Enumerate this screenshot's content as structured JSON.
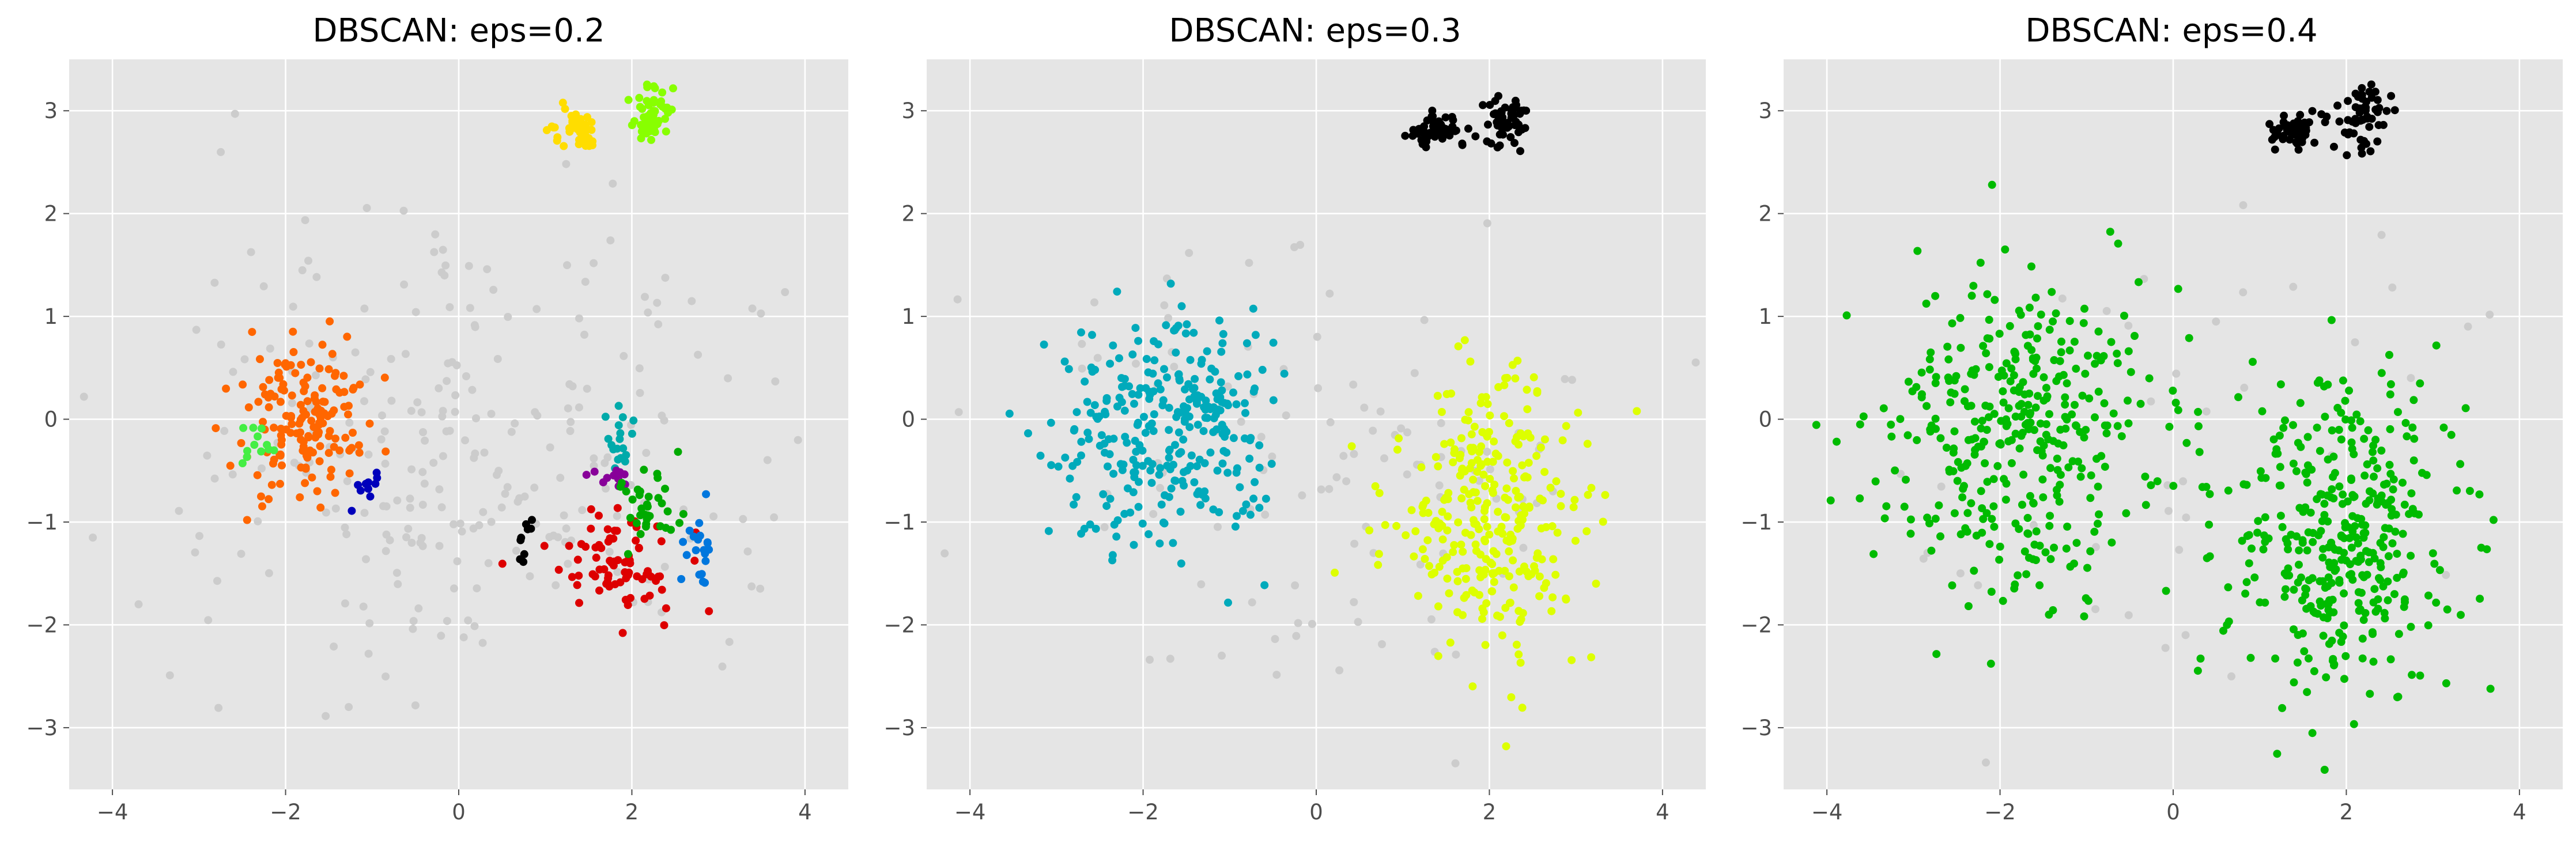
{
  "chart_data": [
    {
      "type": "scatter",
      "title": "DBSCAN: eps=0.2",
      "xlim": [
        -4.5,
        4.5
      ],
      "ylim": [
        -3.6,
        3.5
      ],
      "xticks": [
        -4,
        -2,
        0,
        2,
        4
      ],
      "yticks": [
        -3,
        -2,
        -1,
        0,
        1,
        2,
        3
      ],
      "xtick_labels": [
        "−4",
        "−2",
        "0",
        "2",
        "4"
      ],
      "ytick_labels": [
        "−3",
        "−2",
        "−1",
        "0",
        "1",
        "2",
        "3"
      ],
      "grid": true,
      "style": "ggplot",
      "clusters": [
        {
          "color": "#cccccc",
          "role": "noise",
          "center": [
            0,
            -0.3
          ],
          "spread": [
            1.7,
            1.15
          ],
          "count": 260
        },
        {
          "color": "#ff6600",
          "center": [
            -1.8,
            0.0
          ],
          "spread": [
            0.38,
            0.38
          ],
          "count": 160
        },
        {
          "color": "#ffdd00",
          "center": [
            1.35,
            2.8
          ],
          "spread": [
            0.15,
            0.1
          ],
          "count": 55
        },
        {
          "color": "#88ff00",
          "center": [
            2.25,
            2.92
          ],
          "spread": [
            0.13,
            0.14
          ],
          "count": 55
        },
        {
          "color": "#44ee44",
          "center": [
            -2.35,
            -0.28
          ],
          "spread": [
            0.1,
            0.1
          ],
          "count": 12
        },
        {
          "color": "#0000bb",
          "center": [
            -1.05,
            -0.65
          ],
          "spread": [
            0.1,
            0.06
          ],
          "count": 10
        },
        {
          "color": "#000000",
          "center": [
            0.75,
            -1.15
          ],
          "spread": [
            0.05,
            0.12
          ],
          "count": 9
        },
        {
          "color": "#dd0000",
          "center": [
            1.8,
            -1.45
          ],
          "spread": [
            0.38,
            0.25
          ],
          "count": 80
        },
        {
          "color": "#00aaaa",
          "center": [
            1.85,
            -0.2
          ],
          "spread": [
            0.09,
            0.2
          ],
          "count": 18
        },
        {
          "color": "#880099",
          "center": [
            1.75,
            -0.55
          ],
          "spread": [
            0.15,
            0.05
          ],
          "count": 12
        },
        {
          "color": "#00aa00",
          "center": [
            2.2,
            -0.85
          ],
          "spread": [
            0.2,
            0.17
          ],
          "count": 35
        },
        {
          "color": "#0077dd",
          "center": [
            2.75,
            -1.35
          ],
          "spread": [
            0.1,
            0.17
          ],
          "count": 20
        }
      ]
    },
    {
      "type": "scatter",
      "title": "DBSCAN: eps=0.3",
      "xlim": [
        -4.5,
        4.5
      ],
      "ylim": [
        -3.6,
        3.5
      ],
      "xticks": [
        -4,
        -2,
        0,
        2,
        4
      ],
      "yticks": [
        -3,
        -2,
        -1,
        0,
        1,
        2,
        3
      ],
      "xtick_labels": [
        "−4",
        "−2",
        "0",
        "2",
        "4"
      ],
      "ytick_labels": [
        "−3",
        "−2",
        "−1",
        "0",
        "1",
        "2",
        "3"
      ],
      "grid": true,
      "style": "ggplot",
      "clusters": [
        {
          "color": "#cccccc",
          "role": "noise",
          "center": [
            0,
            -0.3
          ],
          "spread": [
            1.7,
            1.2
          ],
          "count": 110
        },
        {
          "color": "#000000",
          "center": [
            1.4,
            2.8
          ],
          "spread": [
            0.15,
            0.1
          ],
          "count": 55
        },
        {
          "color": "#000000",
          "center": [
            2.2,
            2.9
          ],
          "spread": [
            0.15,
            0.14
          ],
          "count": 55
        },
        {
          "color": "#00aabb",
          "center": [
            -1.7,
            -0.1
          ],
          "spread": [
            0.6,
            0.58
          ],
          "count": 300
        },
        {
          "color": "#ddff00",
          "center": [
            1.95,
            -1.0
          ],
          "spread": [
            0.55,
            0.7
          ],
          "count": 300
        }
      ]
    },
    {
      "type": "scatter",
      "title": "DBSCAN: eps=0.4",
      "xlim": [
        -4.5,
        4.5
      ],
      "ylim": [
        -3.6,
        3.5
      ],
      "xticks": [
        -4,
        -2,
        0,
        2,
        4
      ],
      "yticks": [
        -3,
        -2,
        -1,
        0,
        1,
        2,
        3
      ],
      "xtick_labels": [
        "−4",
        "−2",
        "0",
        "2",
        "4"
      ],
      "ytick_labels": [
        "−3",
        "−2",
        "−1",
        "0",
        "1",
        "2",
        "3"
      ],
      "grid": true,
      "style": "ggplot",
      "clusters": [
        {
          "color": "#cccccc",
          "role": "noise",
          "center": [
            0,
            -0.3
          ],
          "spread": [
            2.2,
            1.3
          ],
          "count": 40
        },
        {
          "color": "#000000",
          "center": [
            1.4,
            2.8
          ],
          "spread": [
            0.15,
            0.1
          ],
          "count": 55
        },
        {
          "color": "#000000",
          "center": [
            2.2,
            2.9
          ],
          "spread": [
            0.15,
            0.14
          ],
          "count": 55
        },
        {
          "color": "#00bb00",
          "center": [
            -1.7,
            -0.1
          ],
          "spread": [
            0.8,
            0.75
          ],
          "count": 380
        },
        {
          "color": "#00bb00",
          "center": [
            1.95,
            -1.1
          ],
          "spread": [
            0.65,
            0.75
          ],
          "count": 380
        }
      ]
    }
  ],
  "colors": {
    "axes_background": "#e5e5e5",
    "grid": "#ffffff",
    "tick_label": "#4d4d4d",
    "tick_mark": "#4d4d4d",
    "figure_background": "#ffffff"
  }
}
